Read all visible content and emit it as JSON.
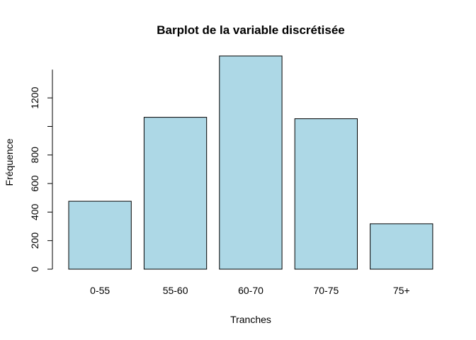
{
  "chart_data": {
    "type": "bar",
    "title": "Barplot de la variable discrétisée",
    "xlabel": "Tranches",
    "ylabel": "Fréquence",
    "categories": [
      "0-55",
      "55-60",
      "60-70",
      "70-75",
      "75+"
    ],
    "values": [
      476,
      1064,
      1494,
      1054,
      318
    ],
    "ylim": [
      0,
      1500
    ],
    "yticks": [
      0,
      200,
      400,
      600,
      800,
      1000,
      1200
    ],
    "ytick_labels": [
      "0",
      "200",
      "400",
      "600",
      "800",
      "",
      "1200"
    ],
    "bar_color": "#add8e6",
    "grid": false,
    "legend": "none"
  }
}
